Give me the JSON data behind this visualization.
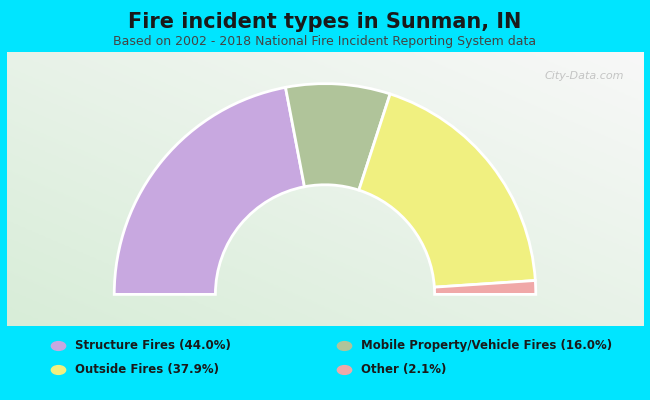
{
  "title": "Fire incident types in Sunman, IN",
  "subtitle": "Based on 2002 - 2018 National Fire Incident Reporting System data",
  "background_color": "#00e5ff",
  "segments": [
    {
      "label": "Structure Fires (44.0%)",
      "value": 44.0,
      "color": "#c8a8e0"
    },
    {
      "label": "Mobile Property/Vehicle Fires (16.0%)",
      "value": 16.0,
      "color": "#b0c49a"
    },
    {
      "label": "Outside Fires (37.9%)",
      "value": 37.9,
      "color": "#f0f080"
    },
    {
      "label": "Other (2.1%)",
      "value": 2.1,
      "color": "#f0a8a8"
    }
  ],
  "legend_colors": [
    "#c8a8e0",
    "#b0c49a",
    "#f0f080",
    "#f0a8a8"
  ],
  "legend_col1": [
    "Structure Fires (44.0%)",
    "Outside Fires (37.9%)"
  ],
  "legend_col2": [
    "Mobile Property/Vehicle Fires (16.0%)",
    "Other (2.1%)"
  ],
  "legend_colors_col1": [
    "#c8a8e0",
    "#f0f080"
  ],
  "legend_colors_col2": [
    "#b0c49a",
    "#f0a8a8"
  ],
  "title_fontsize": 15,
  "subtitle_fontsize": 9,
  "title_color": "#1a1a1a",
  "subtitle_color": "#444444",
  "watermark": "City-Data.com",
  "outer_r": 1.0,
  "inner_r": 0.52
}
